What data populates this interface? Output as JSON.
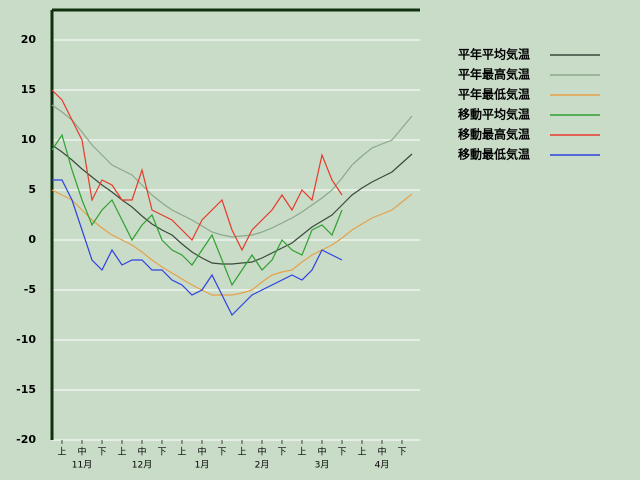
{
  "chart_data": {
    "type": "line",
    "x": [
      0,
      5,
      10,
      15,
      20,
      25,
      30,
      35,
      40,
      45,
      50,
      55,
      60,
      65,
      70,
      75,
      80,
      85,
      90,
      95,
      100,
      105,
      110,
      115,
      120,
      125,
      130,
      135,
      140,
      145,
      150,
      155,
      160,
      165,
      170,
      175,
      180
    ],
    "xlim": [
      0,
      184
    ],
    "xticks": [
      {
        "value": 5,
        "label": "上"
      },
      {
        "value": 15,
        "label": "中"
      },
      {
        "value": 25,
        "label": "下"
      },
      {
        "value": 35,
        "label": "上"
      },
      {
        "value": 45,
        "label": "中"
      },
      {
        "value": 55,
        "label": "下"
      },
      {
        "value": 65,
        "label": "上"
      },
      {
        "value": 75,
        "label": "中"
      },
      {
        "value": 85,
        "label": "下"
      },
      {
        "value": 95,
        "label": "上"
      },
      {
        "value": 105,
        "label": "中"
      },
      {
        "value": 115,
        "label": "下"
      },
      {
        "value": 125,
        "label": "上"
      },
      {
        "value": 135,
        "label": "中"
      },
      {
        "value": 145,
        "label": "下"
      },
      {
        "value": 155,
        "label": "上"
      },
      {
        "value": 165,
        "label": "中"
      },
      {
        "value": 175,
        "label": "下"
      }
    ],
    "months": [
      "11月",
      "12月",
      "1月",
      "2月",
      "3月",
      "4月"
    ],
    "ylim": [
      -20,
      23
    ],
    "yticks": [
      -20,
      -15,
      -10,
      -5,
      0,
      5,
      10,
      15,
      20
    ],
    "grid": true,
    "legend": "right",
    "series": [
      {
        "name": "平年平均気温",
        "color": "#3a4a3a",
        "values": [
          9.5,
          8.8,
          8,
          7.1,
          6.3,
          5.5,
          4.8,
          4,
          3.3,
          2.4,
          1.6,
          1,
          0.5,
          -0.4,
          -1.2,
          -1.8,
          -2.3,
          -2.4,
          -2.4,
          -2.3,
          -2.2,
          -1.8,
          -1.3,
          -0.8,
          -0.3,
          0.5,
          1.3,
          1.9,
          2.5,
          3.5,
          4.5,
          5.2,
          5.8,
          6.3,
          6.8,
          7.7,
          8.6
        ]
      },
      {
        "name": "平年最高気温",
        "color": "#8ca88c",
        "values": [
          13.5,
          12.8,
          12,
          10.8,
          9.5,
          8.5,
          7.5,
          7,
          6.5,
          5.5,
          4.5,
          3.7,
          3,
          2.5,
          2,
          1.4,
          0.8,
          0.5,
          0.3,
          0.4,
          0.5,
          0.8,
          1.2,
          1.7,
          2.2,
          2.8,
          3.5,
          4.2,
          5,
          6.2,
          7.5,
          8.4,
          9.2,
          9.6,
          10,
          11.2,
          12.4
        ]
      },
      {
        "name": "平年最低気温",
        "color": "#e8a048",
        "values": [
          5,
          4.5,
          4,
          3,
          2,
          1.2,
          0.5,
          0,
          -0.5,
          -1.2,
          -2,
          -2.7,
          -3.3,
          -3.9,
          -4.5,
          -5,
          -5.5,
          -5.5,
          -5.5,
          -5.3,
          -5,
          -4.2,
          -3.5,
          -3.2,
          -3,
          -2.2,
          -1.5,
          -1,
          -0.5,
          0.2,
          1,
          1.6,
          2.2,
          2.6,
          3,
          3.8,
          4.6
        ]
      },
      {
        "name": "移動平均気温",
        "color": "#30a030",
        "values": [
          9,
          10.5,
          7,
          4,
          1.5,
          3,
          4,
          2,
          0,
          1.5,
          2.5,
          0,
          -1,
          -1.5,
          -2.5,
          -1,
          0.5,
          -2,
          -4.5,
          -3,
          -1.5,
          -3,
          -2,
          0,
          -1,
          -1.5,
          1,
          1.5,
          0.5,
          3,
          null,
          null,
          null,
          null,
          null,
          null,
          null
        ]
      },
      {
        "name": "移動最高気温",
        "color": "#e83a2a",
        "values": [
          15,
          14,
          12,
          10,
          4,
          6,
          5.5,
          4,
          4,
          7,
          3,
          2.5,
          2,
          1,
          0,
          2,
          3,
          4,
          1,
          -1,
          1,
          2,
          3,
          4.5,
          3,
          5,
          4,
          8.5,
          6,
          4.5,
          null,
          null,
          null,
          null,
          null,
          null,
          null
        ]
      },
      {
        "name": "移動最低気温",
        "color": "#3040e0",
        "values": [
          6,
          6,
          4,
          1,
          -2,
          -3,
          -1,
          -2.5,
          -2,
          -2,
          -3,
          -3,
          -4,
          -4.5,
          -5.5,
          -5,
          -3.5,
          -5.5,
          -7.5,
          -6.5,
          -5.5,
          -5,
          -4.5,
          -4,
          -3.5,
          -4,
          -3,
          -1,
          -1.5,
          -2,
          null,
          null,
          null,
          null,
          null,
          null,
          null
        ]
      }
    ]
  }
}
